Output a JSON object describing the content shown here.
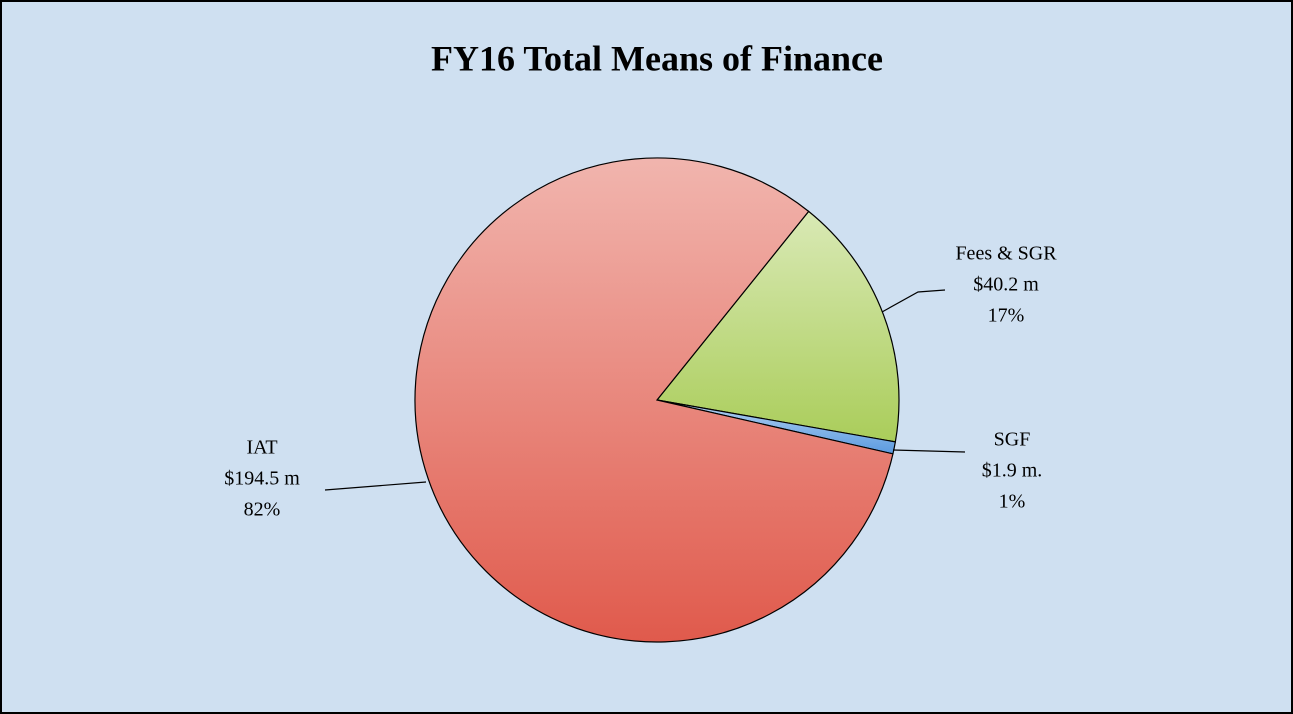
{
  "chart_data": {
    "type": "pie",
    "title": "FY16 Total Means of Finance",
    "categories": [
      "Fees & SGR",
      "SGF",
      "IAT"
    ],
    "values": [
      40.2,
      1.9,
      194.5
    ],
    "value_labels": [
      "$40.2 m",
      "$1.9 m.",
      "$194.5 m"
    ],
    "percent_labels": [
      "17%",
      "1%",
      "82%"
    ],
    "colors": [
      "#aacd5a",
      "#5b9be0",
      "#e05a4c"
    ]
  }
}
